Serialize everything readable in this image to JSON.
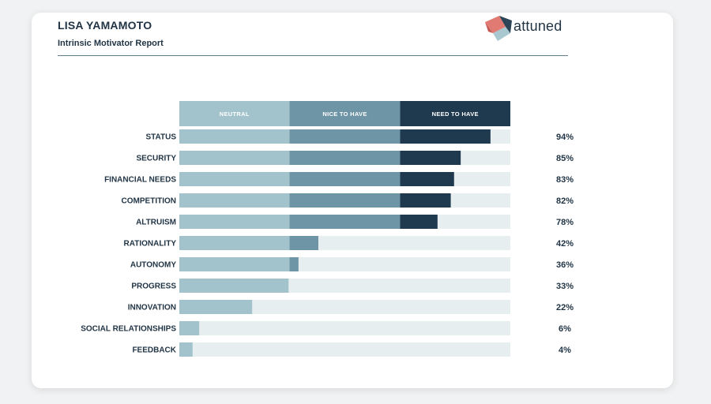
{
  "header": {
    "name": "LISA YAMAMOTO",
    "subtitle": "Intrinsic Motivator Report",
    "logo_text": "attuned"
  },
  "colors": {
    "neutral": "#a2c3cb",
    "nice_to_have": "#6e95a6",
    "need_to_have": "#1f3a4f",
    "track": "#e6eef0",
    "label": "#1f3344"
  },
  "chart_data": {
    "type": "bar",
    "orientation": "horizontal",
    "bands": [
      {
        "label": "NEUTRAL",
        "range": [
          0,
          33.3
        ]
      },
      {
        "label": "NICE TO HAVE",
        "range": [
          33.3,
          66.7
        ]
      },
      {
        "label": "NEED TO HAVE",
        "range": [
          66.7,
          100
        ]
      }
    ],
    "xlim": [
      0,
      100
    ],
    "categories": [
      "STATUS",
      "SECURITY",
      "FINANCIAL NEEDS",
      "COMPETITION",
      "ALTRUISM",
      "RATIONALITY",
      "AUTONOMY",
      "PROGRESS",
      "INNOVATION",
      "SOCIAL RELATIONSHIPS",
      "FEEDBACK"
    ],
    "values": [
      94,
      85,
      83,
      82,
      78,
      42,
      36,
      33,
      22,
      6,
      4
    ],
    "value_labels": [
      "94%",
      "85%",
      "83%",
      "82%",
      "78%",
      "42%",
      "36%",
      "33%",
      "22%",
      "6%",
      "4%"
    ]
  }
}
